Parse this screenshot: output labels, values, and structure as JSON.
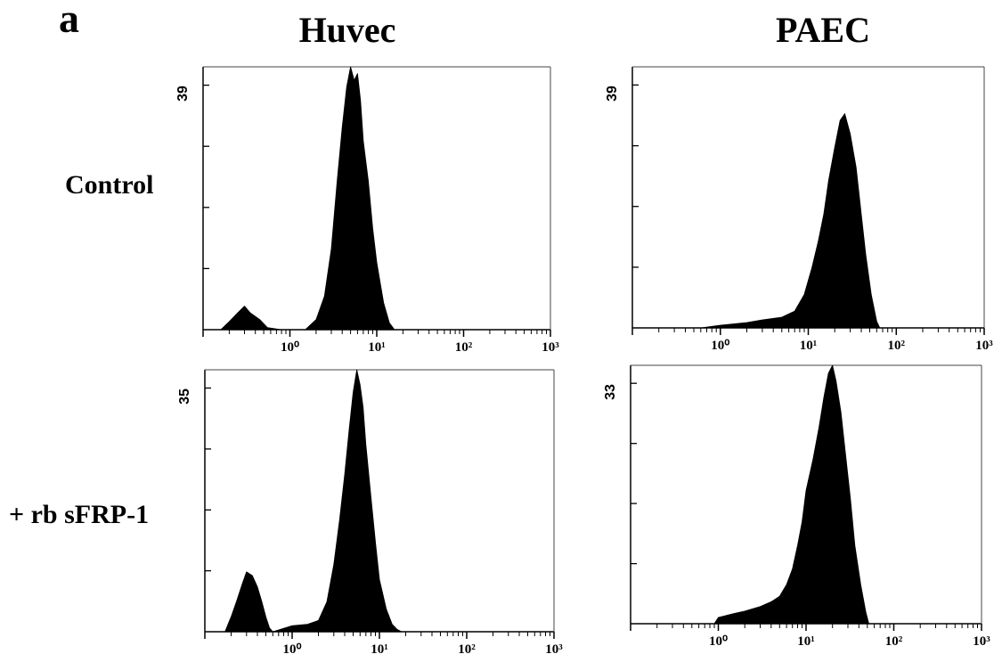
{
  "figure": {
    "panel_letter": "a",
    "columns": [
      "Huvec",
      "PAEC"
    ],
    "rows": [
      "Control",
      "+ rb sFRP-1"
    ]
  },
  "chart_data": [
    {
      "type": "area",
      "id": "huvec-control",
      "column": "Huvec",
      "row": "Control",
      "x_scale": "log",
      "xlim": [
        0.1,
        1000
      ],
      "ylim": [
        0,
        39
      ],
      "ytick_label": "39",
      "xtick_labels": [
        "10⁰",
        "10¹",
        "10²",
        "10³"
      ],
      "x": [
        0.16,
        0.2,
        0.25,
        0.3,
        0.35,
        0.45,
        0.55,
        0.8,
        1.5,
        2.0,
        2.5,
        3.0,
        3.5,
        4.0,
        4.5,
        5.0,
        5.5,
        6.0,
        6.5,
        7.0,
        8.0,
        9.0,
        10.0,
        12.0,
        14.0,
        16.0
      ],
      "y": [
        0,
        1.2,
        2.5,
        3.5,
        2.5,
        1.5,
        0.3,
        0,
        0,
        1.5,
        5,
        12,
        22,
        30,
        36,
        39,
        37,
        38,
        34,
        28,
        22,
        15,
        10,
        4,
        1,
        0
      ]
    },
    {
      "type": "area",
      "id": "paec-control",
      "column": "PAEC",
      "row": "Control",
      "x_scale": "log",
      "xlim": [
        0.1,
        1000
      ],
      "ylim": [
        0,
        39
      ],
      "ytick_label": "39",
      "xtick_labels": [
        "10⁰",
        "10¹",
        "10²",
        "10³"
      ],
      "x": [
        0.6,
        1.0,
        2.0,
        3.0,
        5.0,
        7.0,
        9.0,
        11.0,
        13.0,
        15.0,
        17.0,
        20.0,
        23.0,
        26.0,
        30.0,
        35.0,
        40.0,
        45.0,
        52.0,
        60.0,
        65.0
      ],
      "y": [
        0,
        0.4,
        0.8,
        1.2,
        1.6,
        2.5,
        5,
        9,
        13,
        17,
        22,
        27,
        31,
        32,
        29,
        24,
        17,
        11,
        5,
        1,
        0
      ]
    },
    {
      "type": "area",
      "id": "huvec-sfrp1",
      "column": "Huvec",
      "row": "+ rb sFRP-1",
      "x_scale": "log",
      "xlim": [
        0.1,
        1000
      ],
      "ylim": [
        0,
        35
      ],
      "ytick_label": "35",
      "xtick_labels": [
        "10⁰",
        "10¹",
        "10²",
        "10³"
      ],
      "x": [
        0.17,
        0.2,
        0.23,
        0.27,
        0.3,
        0.35,
        0.4,
        0.45,
        0.5,
        0.55,
        0.6,
        1.0,
        1.5,
        2.0,
        2.5,
        3.0,
        3.5,
        4.0,
        4.5,
        5.0,
        5.5,
        6.0,
        6.5,
        7.0,
        8.0,
        9.0,
        10.0,
        12.0,
        14.0,
        16.0,
        18.0
      ],
      "y": [
        0,
        2,
        4,
        6.5,
        8,
        7.5,
        6,
        4,
        2,
        0.5,
        0,
        0.8,
        1,
        1.5,
        4,
        9,
        15,
        21,
        27,
        32,
        35,
        33,
        30,
        25,
        18,
        12,
        7,
        3,
        1,
        0.3,
        0
      ]
    },
    {
      "type": "area",
      "id": "paec-sfrp1",
      "column": "PAEC",
      "row": "+ rb sFRP-1",
      "x_scale": "log",
      "xlim": [
        0.1,
        1000
      ],
      "ylim": [
        0,
        33
      ],
      "ytick_label": "33",
      "xtick_labels": [
        "10⁰",
        "10¹",
        "10²",
        "10³"
      ],
      "x": [
        0.9,
        1.0,
        1.5,
        2.0,
        3.0,
        4.0,
        5.0,
        6.0,
        7.0,
        8.0,
        9.0,
        10.0,
        12.0,
        14.0,
        16.0,
        18.0,
        20.0,
        22.0,
        25.0,
        28.0,
        32.0,
        36.0,
        42.0,
        48.0,
        52.0
      ],
      "y": [
        0,
        0.8,
        1.3,
        1.6,
        2.2,
        2.8,
        3.5,
        5,
        7,
        10,
        13,
        17,
        21,
        25,
        29,
        32,
        33,
        31,
        27,
        22,
        16,
        10,
        5,
        1.5,
        0
      ]
    }
  ]
}
